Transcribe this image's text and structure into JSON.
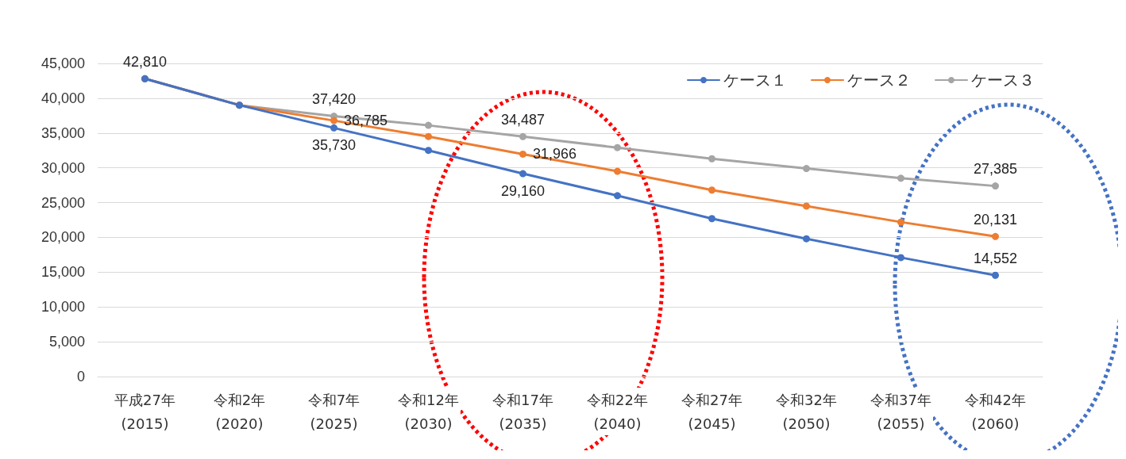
{
  "chart_data": {
    "type": "line",
    "categories": [
      "平成27年\n(2015)",
      "令和2年\n(2020)",
      "令和7年\n(2025)",
      "令和12年\n(2030)",
      "令和17年\n(2035)",
      "令和22年\n(2040)",
      "令和27年\n(2045)",
      "令和32年\n(2050)",
      "令和37年\n(2055)",
      "令和42年\n(2060)"
    ],
    "series": [
      {
        "name": "ケース１",
        "color": "#4472c4",
        "values": [
          42800,
          39000,
          35730,
          32500,
          29160,
          26000,
          22700,
          19800,
          17100,
          14552
        ],
        "value_labels": [
          null,
          null,
          "35,730",
          null,
          "29,160",
          null,
          null,
          null,
          null,
          "14,552"
        ]
      },
      {
        "name": "ケース２",
        "color": "#ed7d31",
        "values": [
          42800,
          39000,
          36785,
          34500,
          31966,
          29500,
          26800,
          24500,
          22200,
          20131
        ],
        "value_labels": [
          null,
          null,
          "36,785",
          null,
          "31,966",
          null,
          null,
          null,
          null,
          "20,131"
        ]
      },
      {
        "name": "ケース３",
        "color": "#a5a5a5",
        "values": [
          42810,
          39000,
          37420,
          36100,
          34487,
          32900,
          31300,
          29900,
          28500,
          27385
        ],
        "value_labels": [
          "42,810",
          null,
          "37,420",
          null,
          "34,487",
          null,
          null,
          null,
          null,
          "27,385"
        ]
      }
    ],
    "ylim": [
      0,
      45000
    ],
    "yticks": [
      0,
      {
        "value": 5000,
        "label": "5,000"
      },
      {
        "value": 10000,
        "label": "10,000"
      },
      {
        "value": 15000,
        "label": "15,000"
      },
      {
        "value": 20000,
        "label": "20,000"
      },
      {
        "value": 25000,
        "label": "25,000"
      },
      {
        "value": 30000,
        "label": "30,000"
      },
      {
        "value": 35000,
        "label": "35,000"
      },
      {
        "value": 40000,
        "label": "40,000"
      },
      {
        "value": 45000,
        "label": "45,000"
      }
    ],
    "grid": "y",
    "legend": "top right",
    "marker": "circle",
    "line_style": "solid"
  }
}
